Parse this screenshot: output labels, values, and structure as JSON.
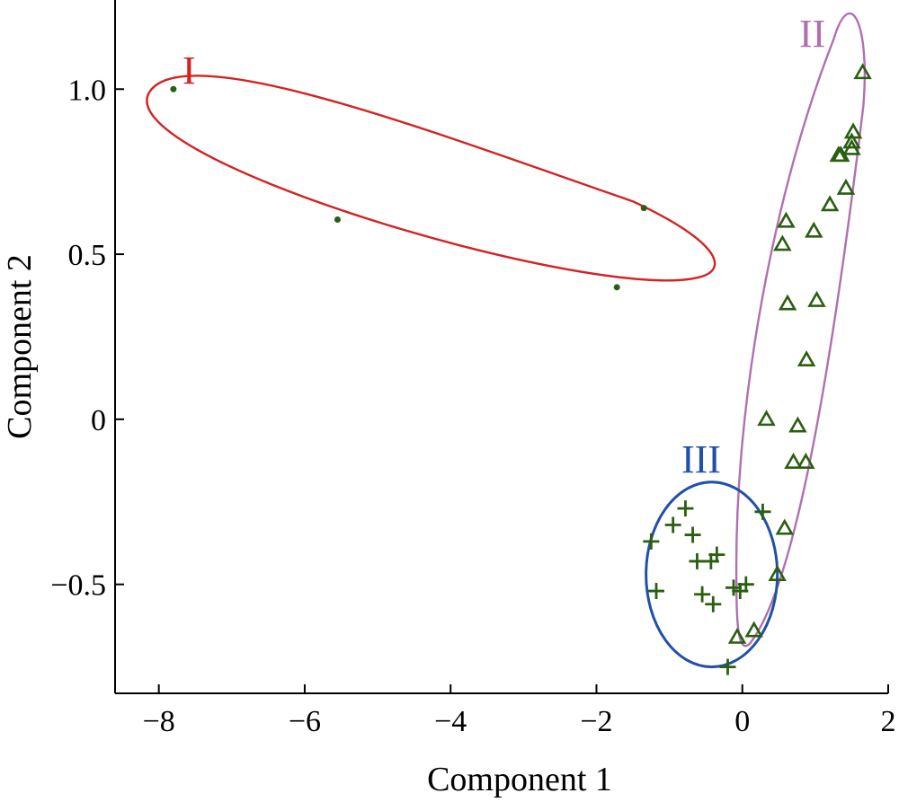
{
  "chart_data": {
    "type": "scatter",
    "xlabel": "Component 1",
    "ylabel": "Component 2",
    "xlim": [
      -8.6,
      2.0
    ],
    "ylim": [
      -0.83,
      1.27
    ],
    "xticks": [
      -8,
      -6,
      -4,
      -2,
      0,
      2
    ],
    "yticks": [
      -0.5,
      0,
      0.5,
      1.0
    ],
    "xtick_labels": [
      "−8",
      "−6",
      "−4",
      "−2",
      "0",
      "2"
    ],
    "ytick_labels": [
      "−0.5",
      "0",
      "0.5",
      "1.0"
    ],
    "grid": false,
    "series": [
      {
        "marker": "dot",
        "color": "#2a5e10",
        "points": [
          [
            -7.8,
            1.0
          ],
          [
            -5.55,
            0.605
          ],
          [
            -1.35,
            0.64
          ],
          [
            -1.72,
            0.4
          ]
        ]
      },
      {
        "marker": "triangle",
        "color": "#2a5e10",
        "points": [
          [
            1.65,
            1.05
          ],
          [
            1.52,
            0.87
          ],
          [
            1.5,
            0.84
          ],
          [
            1.5,
            0.82
          ],
          [
            1.32,
            0.8
          ],
          [
            1.35,
            0.8
          ],
          [
            1.42,
            0.7
          ],
          [
            1.2,
            0.65
          ],
          [
            0.6,
            0.6
          ],
          [
            0.55,
            0.53
          ],
          [
            0.98,
            0.57
          ],
          [
            0.62,
            0.35
          ],
          [
            1.02,
            0.36
          ],
          [
            0.88,
            0.18
          ],
          [
            0.33,
            0.0
          ],
          [
            0.76,
            -0.02
          ],
          [
            0.7,
            -0.13
          ],
          [
            0.87,
            -0.13
          ],
          [
            0.58,
            -0.33
          ],
          [
            0.48,
            -0.47
          ],
          [
            0.16,
            -0.64
          ],
          [
            -0.07,
            -0.66
          ]
        ]
      },
      {
        "marker": "plus",
        "color": "#2a5e10",
        "points": [
          [
            -0.78,
            -0.27
          ],
          [
            -0.95,
            -0.32
          ],
          [
            -0.68,
            -0.35
          ],
          [
            -1.25,
            -0.37
          ],
          [
            0.28,
            -0.28
          ],
          [
            -0.35,
            -0.41
          ],
          [
            -0.43,
            -0.43
          ],
          [
            -0.62,
            -0.43
          ],
          [
            -1.18,
            -0.52
          ],
          [
            -0.55,
            -0.53
          ],
          [
            -0.4,
            -0.56
          ],
          [
            -0.12,
            -0.51
          ],
          [
            0.05,
            -0.5
          ],
          [
            -0.03,
            -0.52
          ],
          [
            -0.2,
            -0.75
          ]
        ]
      }
    ],
    "groups": [
      {
        "label": "I",
        "color": "#d42222"
      },
      {
        "label": "II",
        "color": "#b070b0"
      },
      {
        "label": "III",
        "color": "#2050a8"
      }
    ]
  }
}
